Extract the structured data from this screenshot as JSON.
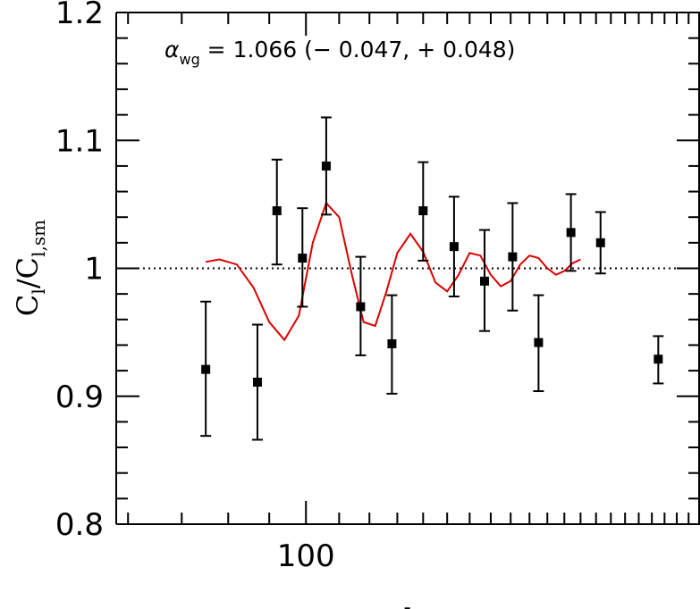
{
  "chart_data": {
    "type": "scatter",
    "xlabel": "l",
    "ylabel": {
      "main": "C",
      "sub1": "l",
      "mid": "/C",
      "sub2": "l,sm"
    },
    "x_scale": "log",
    "xlim": [
      58,
      310
    ],
    "ylim": [
      0.8,
      1.2
    ],
    "x_ticks": [
      100
    ],
    "x_tick_labels": [
      "100"
    ],
    "y_ticks": [
      0.8,
      0.9,
      1.0,
      1.1,
      1.2
    ],
    "y_tick_labels": [
      "0.8",
      "0.9",
      "1",
      "1.1",
      "1.2"
    ],
    "reference_line": {
      "y": 1.0,
      "style": "dotted",
      "color": "#000000"
    },
    "annotation": {
      "symbol": "α",
      "subscript": "wg",
      "text": " =  1.066  (−  0.047,  +  0.048)"
    },
    "series": [
      {
        "marker": "square",
        "color": "#000000",
        "points": [
          {
            "x": 75,
            "y": 0.921,
            "ylo": 0.869,
            "yhi": 0.974
          },
          {
            "x": 87,
            "y": 0.911,
            "ylo": 0.866,
            "yhi": 0.956
          },
          {
            "x": 92,
            "y": 1.045,
            "ylo": 1.003,
            "yhi": 1.085
          },
          {
            "x": 99,
            "y": 1.008,
            "ylo": 0.97,
            "yhi": 1.047
          },
          {
            "x": 106,
            "y": 1.08,
            "ylo": 1.042,
            "yhi": 1.118
          },
          {
            "x": 117,
            "y": 0.97,
            "ylo": 0.932,
            "yhi": 1.009
          },
          {
            "x": 128,
            "y": 0.941,
            "ylo": 0.902,
            "yhi": 0.979
          },
          {
            "x": 140,
            "y": 1.045,
            "ylo": 1.006,
            "yhi": 1.083
          },
          {
            "x": 153,
            "y": 1.017,
            "ylo": 0.978,
            "yhi": 1.056
          },
          {
            "x": 167,
            "y": 0.99,
            "ylo": 0.951,
            "yhi": 1.03
          },
          {
            "x": 181,
            "y": 1.009,
            "ylo": 0.967,
            "yhi": 1.051
          },
          {
            "x": 195,
            "y": 0.942,
            "ylo": 0.904,
            "yhi": 0.979
          },
          {
            "x": 214,
            "y": 1.028,
            "ylo": 0.998,
            "yhi": 1.058
          },
          {
            "x": 233,
            "y": 1.02,
            "ylo": 0.996,
            "yhi": 1.044
          },
          {
            "x": 275,
            "y": 0.929,
            "ylo": 0.91,
            "yhi": 0.947
          }
        ]
      },
      {
        "type": "line",
        "color": "#dd0000",
        "x": [
          75,
          78,
          82,
          86,
          90,
          94,
          98,
          102,
          106,
          110,
          114,
          118,
          122,
          126,
          130,
          135,
          140,
          145,
          150,
          155,
          160,
          165,
          170,
          175,
          180,
          185,
          190,
          195,
          200,
          205,
          210,
          215,
          220
        ],
        "y": [
          1.005,
          1.007,
          1.003,
          0.985,
          0.958,
          0.944,
          0.963,
          1.02,
          1.051,
          1.04,
          0.996,
          0.958,
          0.955,
          0.982,
          1.012,
          1.027,
          1.013,
          0.989,
          0.982,
          0.995,
          1.012,
          1.01,
          0.995,
          0.986,
          0.99,
          1.003,
          1.01,
          1.008,
          1.0,
          0.995,
          0.998,
          1.004,
          1.007
        ]
      }
    ]
  }
}
